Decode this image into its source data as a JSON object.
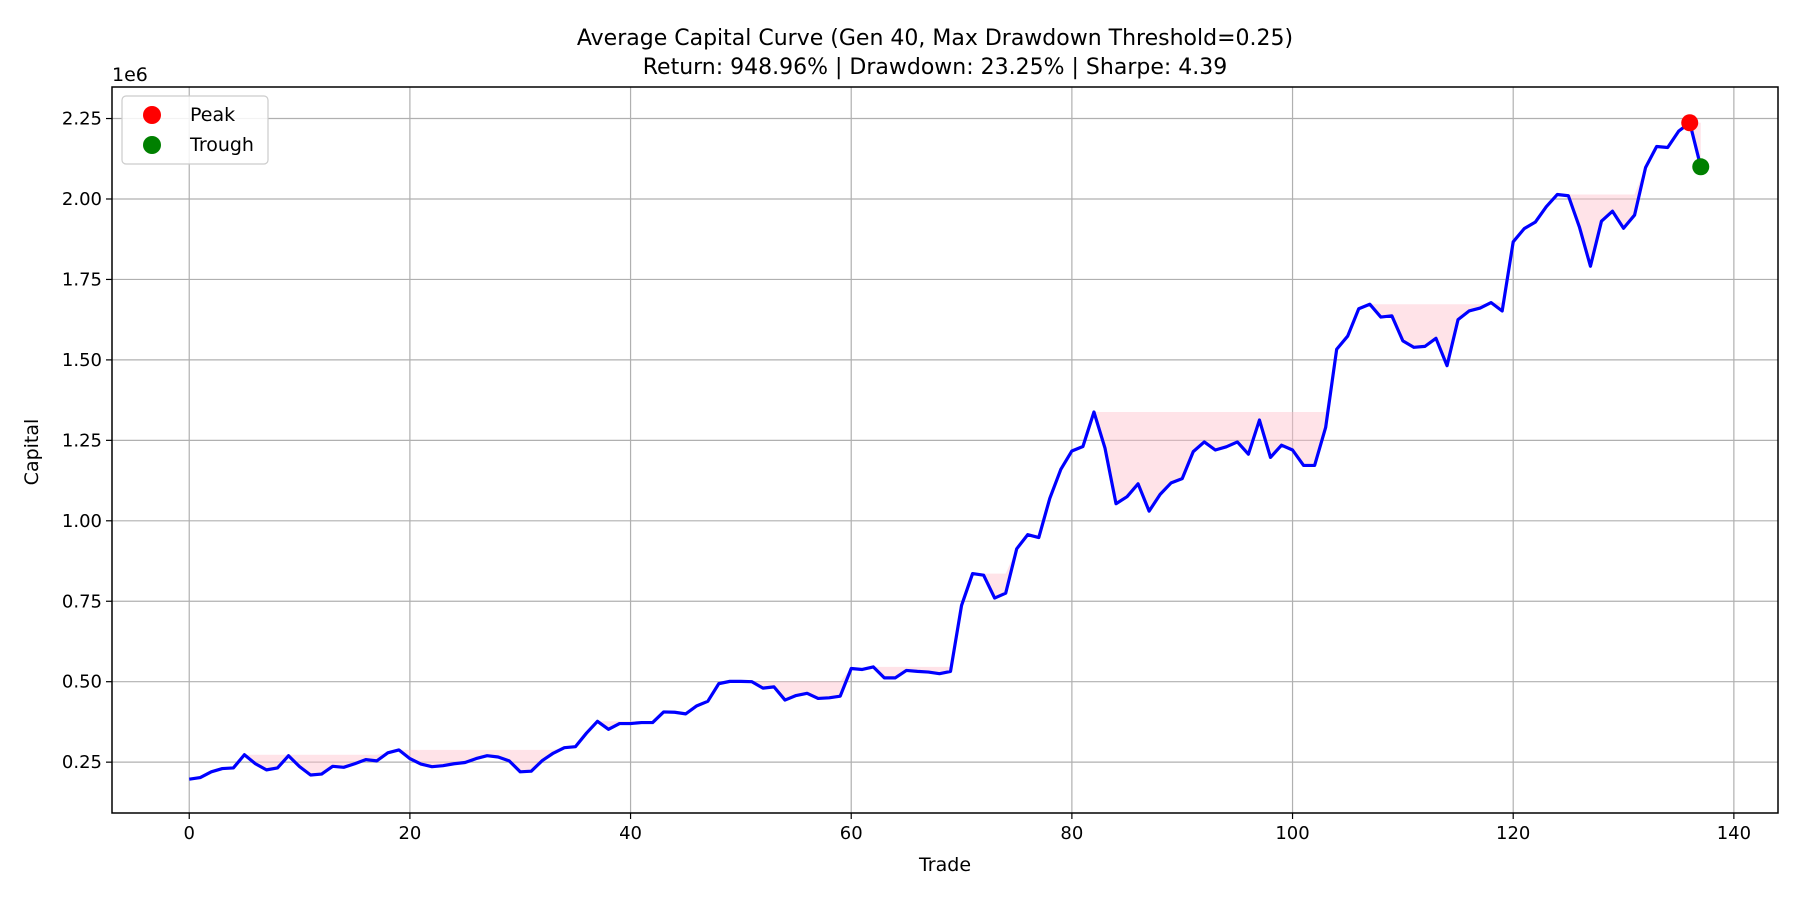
{
  "chart_data": {
    "type": "line",
    "title": "Average Capital Curve (Gen 40, Max Drawdown Threshold=0.25)",
    "subtitle": "Return: 948.96% | Drawdown: 23.25% | Sharpe: 4.39",
    "xlabel": "Trade",
    "ylabel": "Capital",
    "y_offset_label": "1e6",
    "xlim": [
      -7,
      144
    ],
    "ylim": [
      0.092,
      2.348
    ],
    "x_ticks": [
      0,
      20,
      40,
      60,
      80,
      100,
      120,
      140
    ],
    "y_ticks": [
      0.25,
      0.5,
      0.75,
      1.0,
      1.25,
      1.5,
      1.75,
      2.0,
      2.25
    ],
    "y_tick_labels": [
      "0.25",
      "0.50",
      "0.75",
      "1.00",
      "1.25",
      "1.50",
      "1.75",
      "2.00",
      "2.25"
    ],
    "grid": true,
    "legend_position": "top-left",
    "colors": {
      "line": "#0000ff",
      "drawdown_fill": "#ffc0cb",
      "peak": "#ff0000",
      "trough": "#008000",
      "grid": "#b0b0b0"
    },
    "series": [
      {
        "unit": "1e6",
        "values": [
          0.197,
          0.202,
          0.22,
          0.23,
          0.232,
          0.273,
          0.245,
          0.226,
          0.232,
          0.27,
          0.236,
          0.21,
          0.213,
          0.237,
          0.234,
          0.245,
          0.258,
          0.254,
          0.279,
          0.288,
          0.261,
          0.244,
          0.236,
          0.239,
          0.245,
          0.249,
          0.261,
          0.27,
          0.266,
          0.254,
          0.22,
          0.222,
          0.255,
          0.278,
          0.295,
          0.298,
          0.34,
          0.377,
          0.352,
          0.37,
          0.37,
          0.373,
          0.373,
          0.406,
          0.405,
          0.4,
          0.425,
          0.439,
          0.494,
          0.501,
          0.501,
          0.5,
          0.48,
          0.484,
          0.443,
          0.457,
          0.464,
          0.448,
          0.45,
          0.455,
          0.541,
          0.538,
          0.546,
          0.512,
          0.512,
          0.535,
          0.532,
          0.53,
          0.525,
          0.532,
          0.737,
          0.836,
          0.831,
          0.76,
          0.775,
          0.913,
          0.957,
          0.948,
          1.07,
          1.16,
          1.217,
          1.231,
          1.338,
          1.226,
          1.053,
          1.075,
          1.115,
          1.03,
          1.082,
          1.118,
          1.131,
          1.215,
          1.245,
          1.22,
          1.23,
          1.245,
          1.207,
          1.313,
          1.197,
          1.235,
          1.22,
          1.172,
          1.172,
          1.29,
          1.533,
          1.574,
          1.659,
          1.673,
          1.633,
          1.637,
          1.559,
          1.539,
          1.542,
          1.567,
          1.482,
          1.625,
          1.652,
          1.661,
          1.678,
          1.652,
          1.867,
          1.908,
          1.928,
          1.976,
          2.014,
          2.01,
          1.913,
          1.791,
          1.931,
          1.962,
          1.909,
          1.95,
          2.098,
          2.163,
          2.16,
          2.211,
          2.237,
          2.1
        ]
      }
    ],
    "legend": [
      {
        "label": "Peak",
        "color": "#ff0000"
      },
      {
        "label": "Trough",
        "color": "#008000"
      }
    ],
    "markers": [
      {
        "name": "Peak",
        "x": 136,
        "y": 2.237
      },
      {
        "name": "Trough",
        "x": 137,
        "y": 2.1
      }
    ]
  }
}
